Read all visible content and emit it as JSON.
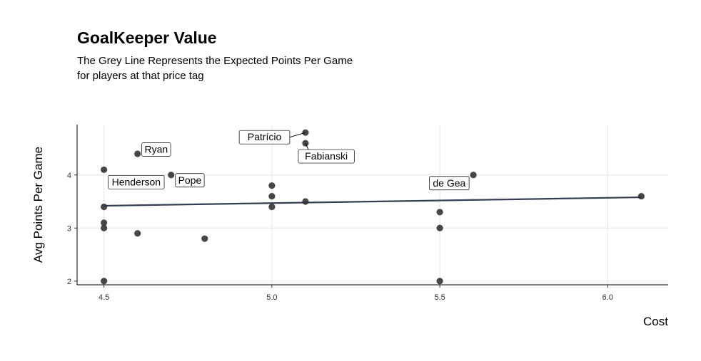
{
  "title": "GoalKeeper Value",
  "subtitle_lines": [
    "The Grey Line Represents the Expected Points Per Game",
    "for players at that price tag"
  ],
  "colors": {
    "points": "#333333",
    "trend_line": "#343f56",
    "grid": "#e6e6e6",
    "axis": "#000000"
  },
  "chart_data": {
    "type": "scatter",
    "title": "GoalKeeper Value",
    "xlabel": "Cost",
    "ylabel": "Avg Points Per Game",
    "xlim": [
      4.42,
      6.18
    ],
    "ylim": [
      1.93,
      4.95
    ],
    "x_ticks": [
      4.5,
      5.0,
      5.5,
      6.0
    ],
    "x_tick_labels": [
      "4.5",
      "5.0",
      "5.5",
      "6.0"
    ],
    "y_ticks": [
      2,
      3,
      4
    ],
    "y_tick_labels": [
      "2",
      "3",
      "4"
    ],
    "grid": true,
    "points": [
      {
        "x": 4.5,
        "y": 4.1
      },
      {
        "x": 4.5,
        "y": 3.4
      },
      {
        "x": 4.5,
        "y": 3.1
      },
      {
        "x": 4.5,
        "y": 3.0
      },
      {
        "x": 4.5,
        "y": 2.0
      },
      {
        "x": 4.6,
        "y": 4.4
      },
      {
        "x": 4.6,
        "y": 2.9
      },
      {
        "x": 4.7,
        "y": 4.0
      },
      {
        "x": 4.8,
        "y": 2.8
      },
      {
        "x": 5.0,
        "y": 3.8
      },
      {
        "x": 5.0,
        "y": 3.6
      },
      {
        "x": 5.0,
        "y": 3.4
      },
      {
        "x": 5.1,
        "y": 4.8
      },
      {
        "x": 5.1,
        "y": 4.6
      },
      {
        "x": 5.1,
        "y": 3.5
      },
      {
        "x": 5.5,
        "y": 3.3
      },
      {
        "x": 5.5,
        "y": 3.0
      },
      {
        "x": 5.5,
        "y": 2.0
      },
      {
        "x": 5.6,
        "y": 4.0
      },
      {
        "x": 6.1,
        "y": 3.6
      }
    ],
    "trend_line": {
      "x": [
        4.5,
        6.1
      ],
      "y": [
        3.42,
        3.58
      ]
    },
    "labels": [
      {
        "text": "Ryan",
        "x": 4.6,
        "y": 4.4,
        "placement": "right",
        "connector": false
      },
      {
        "text": "Henderson",
        "x": 4.5,
        "y": 4.1,
        "placement": "below-right",
        "connector": false
      },
      {
        "text": "Pope",
        "x": 4.7,
        "y": 4.0,
        "placement": "right",
        "connector": false
      },
      {
        "text": "Patrício",
        "x": 5.1,
        "y": 4.8,
        "placement": "left",
        "connector": true
      },
      {
        "text": "Fabianski",
        "x": 5.1,
        "y": 4.6,
        "placement": "below",
        "connector": true
      },
      {
        "text": "de Gea",
        "x": 5.6,
        "y": 4.0,
        "placement": "below-left",
        "connector": false
      }
    ]
  }
}
